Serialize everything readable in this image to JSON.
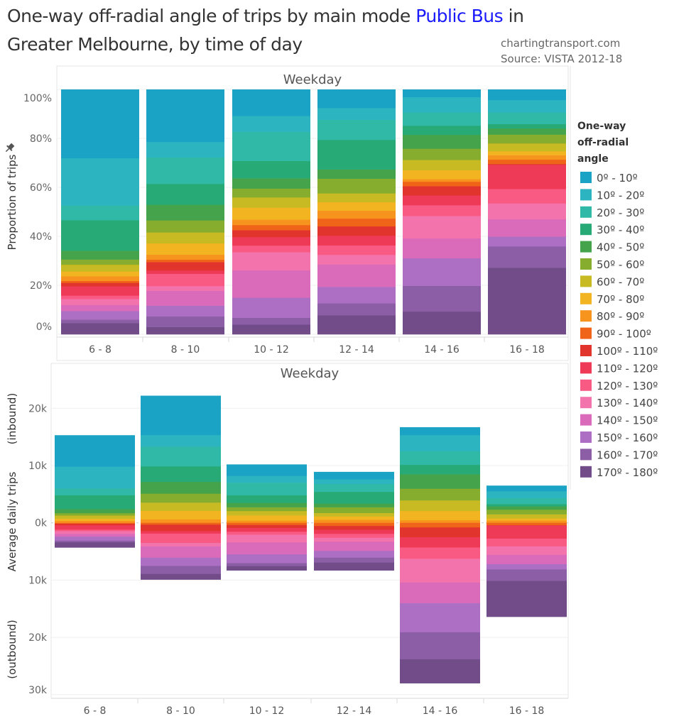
{
  "header": {
    "title_part1": "One-way off-radial angle of trips by main mode ",
    "title_highlight": "Public Bus",
    "title_part2": " in",
    "title_line2": "Greater Melbourne, by time of day",
    "credit_site": "chartingtransport.com",
    "credit_source": "Source: VISTA 2012-18"
  },
  "legend": {
    "title_lines": [
      "One-way",
      "off-radial",
      "angle"
    ]
  },
  "colors": {
    "highlight": "#1a1aff"
  },
  "chart_data": [
    {
      "type": "bar",
      "stacked": true,
      "panel_header": "Weekday",
      "ylabel": "Proportion of trips",
      "xlabel": "",
      "ylim": [
        0,
        100
      ],
      "yticks": [
        "0%",
        "20%",
        "40%",
        "60%",
        "80%",
        "100%"
      ],
      "categories": [
        "6 - 8",
        "8 - 10",
        "10 - 12",
        "12 - 14",
        "14 - 16",
        "16 - 18"
      ],
      "grid": true,
      "legend_position": "right",
      "series": [
        {
          "name": "0º - 10º",
          "color": "#1ba3c6",
          "values": [
            28.0,
            21.4,
            10.8,
            7.6,
            3.1,
            4.3
          ]
        },
        {
          "name": "10º - 20º",
          "color": "#2cb5c0",
          "values": [
            19.3,
            6.3,
            6.5,
            4.8,
            6.3,
            5.1
          ]
        },
        {
          "name": "20º - 30º",
          "color": "#2fb9a6",
          "values": [
            6.0,
            10.8,
            11.9,
            8.2,
            5.4,
            4.7
          ]
        },
        {
          "name": "30º - 40º",
          "color": "#27aa76",
          "values": [
            12.4,
            8.5,
            7.1,
            12.1,
            3.7,
            1.8
          ]
        },
        {
          "name": "40º - 50º",
          "color": "#45a44b",
          "values": [
            3.6,
            6.4,
            4.2,
            3.8,
            5.7,
            2.5
          ]
        },
        {
          "name": "50º - 60º",
          "color": "#87ad2e",
          "values": [
            2.1,
            4.9,
            3.6,
            6.0,
            4.6,
            3.6
          ]
        },
        {
          "name": "60º - 70º",
          "color": "#c8ba22",
          "values": [
            2.8,
            4.5,
            4.2,
            3.6,
            4.2,
            3.2
          ]
        },
        {
          "name": "70º - 80º",
          "color": "#f2b421",
          "values": [
            1.9,
            4.6,
            4.9,
            3.5,
            3.6,
            1.6
          ]
        },
        {
          "name": "80º - 90º",
          "color": "#f7941d",
          "values": [
            1.9,
            2.0,
            2.2,
            3.2,
            1.1,
            1.8
          ]
        },
        {
          "name": "90º - 100º",
          "color": "#f0641a",
          "values": [
            0.8,
            1.0,
            2.1,
            3.2,
            1.8,
            1.8
          ]
        },
        {
          "name": "100º - 110º",
          "color": "#e0342c",
          "values": [
            1.4,
            3.4,
            2.8,
            3.8,
            3.8,
            0.3
          ]
        },
        {
          "name": "110º - 120º",
          "color": "#ee3a56",
          "values": [
            3.8,
            1.4,
            3.5,
            4.0,
            4.0,
            9.9
          ]
        },
        {
          "name": "120º - 130º",
          "color": "#f95a84",
          "values": [
            1.4,
            5.0,
            2.7,
            3.9,
            4.4,
            5.9
          ]
        },
        {
          "name": "130º - 140º",
          "color": "#f374ad",
          "values": [
            2.4,
            1.9,
            7.4,
            3.9,
            9.2,
            6.4
          ]
        },
        {
          "name": "140º - 150º",
          "color": "#d96bba",
          "values": [
            2.5,
            6.1,
            11.2,
            9.2,
            8.1,
            7.1
          ]
        },
        {
          "name": "150º - 160º",
          "color": "#ad6fc4",
          "values": [
            3.5,
            4.4,
            8.2,
            6.7,
            11.3,
            4.0
          ]
        },
        {
          "name": "160º - 170º",
          "color": "#8b5ea6",
          "values": [
            1.4,
            4.3,
            2.8,
            4.9,
            10.5,
            8.7
          ]
        },
        {
          "name": "170º - 180º",
          "color": "#714c89",
          "values": [
            4.6,
            3.0,
            4.0,
            7.8,
            9.3,
            27.2
          ]
        }
      ]
    },
    {
      "type": "bar",
      "stacked": true,
      "diverging": true,
      "panel_header": "Weekday",
      "ylabel": "Average daily trips",
      "ylabel_up": "(inbound)",
      "ylabel_down": "(outbound)",
      "ylim": [
        -30000,
        22500
      ],
      "yticks": [
        {
          "value": 20000,
          "label": "20k"
        },
        {
          "value": 10000,
          "label": "10k"
        },
        {
          "value": 0,
          "label": "0k"
        },
        {
          "value": -10000,
          "label": "10k"
        },
        {
          "value": -20000,
          "label": "20k"
        },
        {
          "value": -30000,
          "label": "30k"
        }
      ],
      "categories": [
        "6 - 8",
        "8 - 10",
        "10 - 12",
        "12 - 14",
        "14 - 16",
        "16 - 18"
      ],
      "inbound_total": [
        15300,
        22200,
        10200,
        8900,
        16700,
        6500
      ],
      "outbound_total": [
        4300,
        9900,
        8300,
        8300,
        28000,
        16400
      ],
      "note": "segments use the same angle shares as the proportion chart; 0º-90º inbound, 90º-180º outbound"
    }
  ]
}
